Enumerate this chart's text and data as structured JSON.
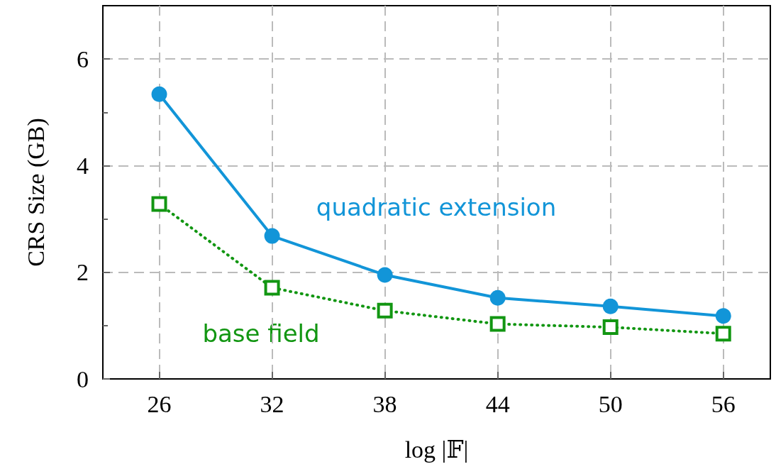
{
  "chart_data": {
    "type": "line",
    "xlabel": "log |𝔽|",
    "ylabel": "CRS Size (GB)",
    "x": [
      26,
      32,
      38,
      44,
      50,
      56
    ],
    "series": [
      {
        "name": "quadratic extension",
        "color": "#1295d8",
        "values": [
          5.34,
          2.68,
          1.95,
          1.52,
          1.36,
          1.18
        ],
        "marker": "circle",
        "line_style": "solid"
      },
      {
        "name": "base field",
        "color": "#129612",
        "values": [
          3.28,
          1.71,
          1.28,
          1.03,
          0.97,
          0.85
        ],
        "marker": "square",
        "line_style": "dotted"
      }
    ],
    "xlim": [
      23,
      58.5
    ],
    "ylim": [
      0,
      7
    ],
    "xticks": [
      26,
      32,
      38,
      44,
      50,
      56
    ],
    "yticks": [
      0,
      {
        "value": 1,
        "label": null
      },
      2,
      {
        "value": 3,
        "label": null
      },
      4,
      {
        "value": 5,
        "label": null
      },
      6
    ],
    "grid": true
  }
}
